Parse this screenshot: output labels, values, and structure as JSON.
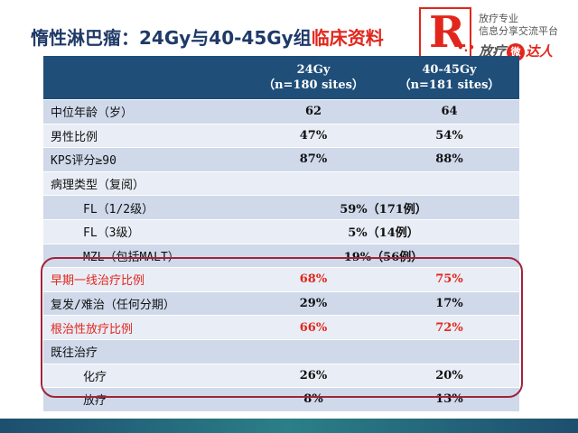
{
  "title": {
    "main": "惰性淋巴瘤：24Gy与40-45Gy组",
    "highlight": "临床资料"
  },
  "logo": {
    "letter": "R",
    "line1": "放疗专业",
    "line2": "信息分享交流平台",
    "brand_pre": "放疗",
    "brand_circle": "微",
    "brand_post": "达人"
  },
  "table": {
    "headers": [
      {
        "line1": "24Gy",
        "line2": "（n=180 sites）"
      },
      {
        "line1": "40-45Gy",
        "line2": "（n=181 sites）"
      }
    ],
    "rows": [
      {
        "label": "中位年龄（岁）",
        "a": "62",
        "b": "64"
      },
      {
        "label": "男性比例",
        "a": "47%",
        "b": "54%"
      },
      {
        "label": "KPS评分≥90",
        "a": "87%",
        "b": "88%"
      },
      {
        "label": "病理类型（复阅）"
      },
      {
        "label": "FL（1/2级）",
        "merged": "59%（171例）"
      },
      {
        "label": "FL（3级）",
        "merged": "5%（14例）"
      },
      {
        "label": "MZL（包括MALT）",
        "merged": "19%（56例）"
      },
      {
        "label": "早期一线治疗比例",
        "a": "68%",
        "b": "75%"
      },
      {
        "label": "复发/难治（任何分期）",
        "a": "29%",
        "b": "17%"
      },
      {
        "label": "根治性放疗比例",
        "a": "66%",
        "b": "72%"
      },
      {
        "label": "既往治疗"
      },
      {
        "label": "化疗",
        "a": "26%",
        "b": "20%"
      },
      {
        "label": "放疗",
        "a": "8%",
        "b": "13%"
      }
    ]
  },
  "colors": {
    "title": "#1f3a68",
    "accent_red": "#e2261c",
    "header_bg": "#1f4e79",
    "row_odd": "#cfd9ea",
    "row_even": "#e8edf6",
    "highlight_border": "#a0243a"
  }
}
